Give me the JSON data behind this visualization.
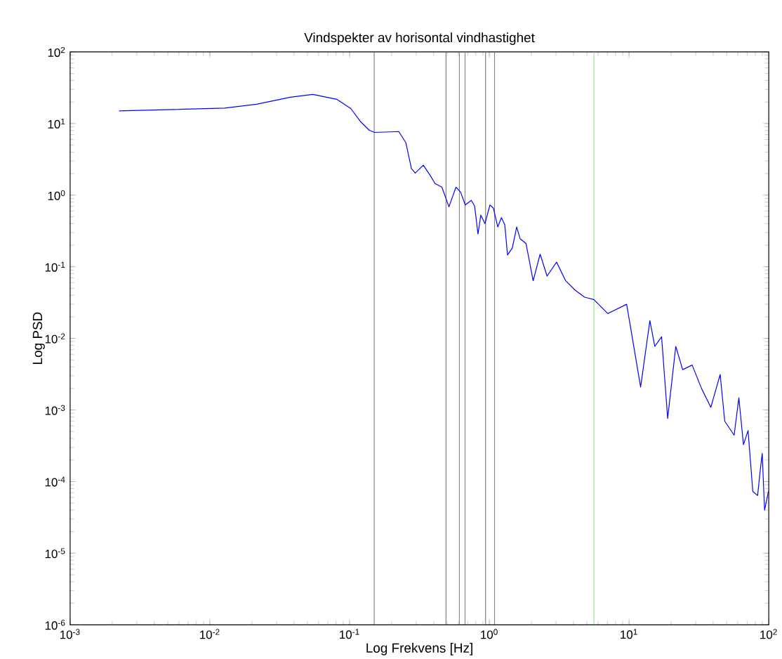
{
  "chart_data": {
    "type": "line",
    "title": "Vindspekter av horisontal vindhastighet",
    "xlabel": "Log Frekvens [Hz]",
    "ylabel": "Log PSD",
    "log": "xy",
    "grid": false,
    "marker": "none",
    "line_style": "solid",
    "xlim": [
      0.001,
      100
    ],
    "ylim": [
      1e-06,
      100
    ],
    "xticks": [
      {
        "value": 0.001,
        "label": "10$^{-3}$"
      },
      {
        "value": 0.01,
        "label": "10$^{-2}$"
      },
      {
        "value": 0.1,
        "label": "10$^{-1}$"
      },
      {
        "value": 1,
        "label": "10$^{0}$"
      },
      {
        "value": 10,
        "label": "10$^{1}$"
      },
      {
        "value": 100,
        "label": "10$^{2}$"
      }
    ],
    "yticks": [
      {
        "value": 1e-06,
        "label": "10$^{-6}$"
      },
      {
        "value": 1e-05,
        "label": "10$^{-5}$"
      },
      {
        "value": 0.0001,
        "label": "10$^{-4}$"
      },
      {
        "value": 0.001,
        "label": "10$^{-3}$"
      },
      {
        "value": 0.01,
        "label": "10$^{-2}$"
      },
      {
        "value": 0.1,
        "label": "10$^{-1}$"
      },
      {
        "value": 1,
        "label": "10$^{0}$"
      },
      {
        "value": 10,
        "label": "10$^{1}$"
      },
      {
        "value": 100,
        "label": "10$^{2}$"
      }
    ],
    "ref_lines": [
      {
        "axis": "x",
        "value": 0.15,
        "color": "#808080"
      },
      {
        "axis": "x",
        "value": 0.49,
        "color": "#808080"
      },
      {
        "axis": "x",
        "value": 0.61,
        "color": "#808080"
      },
      {
        "axis": "x",
        "value": 0.67,
        "color": "#808080"
      },
      {
        "axis": "x",
        "value": 0.94,
        "color": "#808080"
      },
      {
        "axis": "x",
        "value": 1.09,
        "color": "#808080"
      },
      {
        "axis": "x",
        "value": 5.6,
        "color": "#80e080"
      }
    ],
    "series": [
      {
        "color": "#0000ff",
        "x": [
          0.00224,
          0.0127,
          0.0216,
          0.0377,
          0.0546,
          0.0809,
          0.102,
          0.12,
          0.138,
          0.151,
          0.225,
          0.253,
          0.277,
          0.295,
          0.337,
          0.378,
          0.408,
          0.458,
          0.514,
          0.577,
          0.622,
          0.673,
          0.743,
          0.785,
          0.83,
          0.869,
          0.931,
          1.01,
          1.07,
          1.15,
          1.22,
          1.29,
          1.35,
          1.46,
          1.57,
          1.66,
          1.83,
          2.06,
          2.31,
          2.59,
          3.03,
          3.52,
          4.11,
          4.81,
          5.6,
          7.05,
          9.61,
          10.4,
          12.1,
          14.1,
          15.3,
          17.1,
          18.9,
          21.6,
          24.2,
          28.3,
          33.0,
          38.5,
          44.9,
          48.4,
          56.5,
          61.1,
          65.9,
          71.1,
          76.9,
          83.2,
          86.5,
          89.8,
          93.3,
          99.5
        ],
        "values": [
          15,
          16.4,
          18.6,
          23.3,
          25.5,
          21.8,
          16.2,
          10.6,
          8.09,
          7.52,
          7.73,
          5.38,
          2.36,
          2.03,
          2.62,
          1.88,
          1.46,
          1.29,
          0.687,
          1.29,
          1.11,
          0.729,
          0.846,
          0.706,
          0.286,
          0.525,
          0.4,
          0.729,
          0.658,
          0.359,
          0.485,
          0.387,
          0.146,
          0.182,
          0.359,
          0.247,
          0.212,
          0.0637,
          0.15,
          0.074,
          0.116,
          0.0637,
          0.0471,
          0.0376,
          0.0349,
          0.0222,
          0.0299,
          0.0121,
          0.00209,
          0.0177,
          0.00773,
          0.0105,
          0.000762,
          0.00773,
          0.00366,
          0.00424,
          0.002,
          0.00109,
          0.00313,
          0.000697,
          0.000444,
          0.00148,
          0.000328,
          0.000515,
          7.29e-05,
          6.37e-05,
          0.000133,
          0.000247,
          4e-05,
          7.29e-05
        ]
      }
    ]
  }
}
